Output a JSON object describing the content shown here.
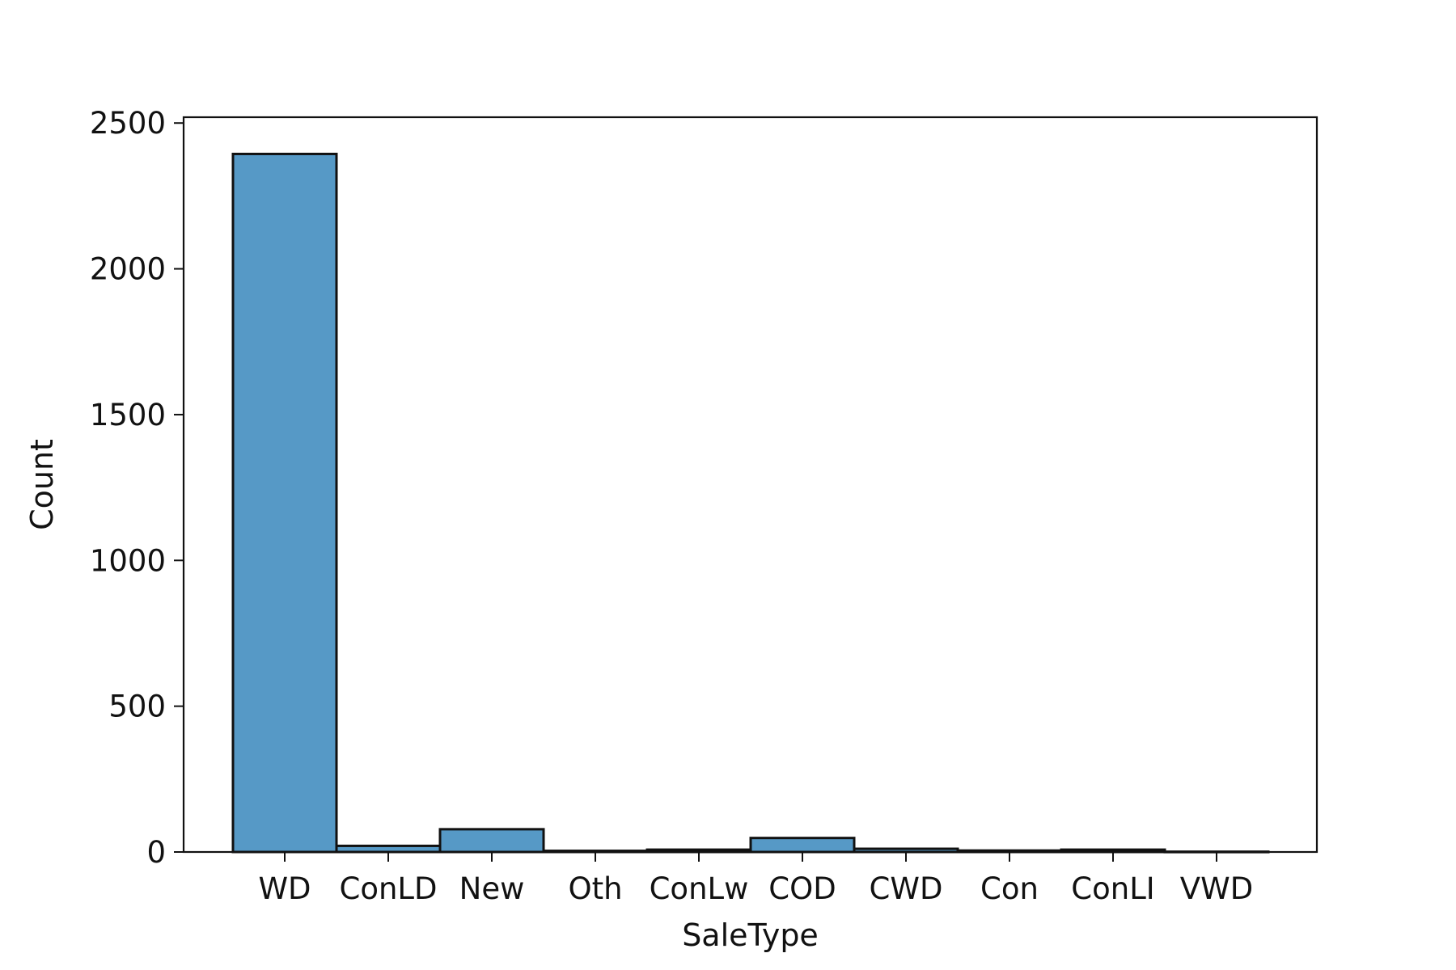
{
  "chart_data": {
    "type": "bar",
    "title": "",
    "xlabel": "SaleType",
    "ylabel": "Count",
    "categories": [
      "WD",
      "ConLD",
      "New",
      "Oth",
      "ConLw",
      "COD",
      "CWD",
      "Con",
      "ConLI",
      "VWD"
    ],
    "values": [
      2394,
      21,
      78,
      4,
      8,
      48,
      11,
      5,
      8,
      1
    ],
    "ylim": [
      0,
      2520
    ],
    "yticks": [
      0,
      500,
      1000,
      1500,
      2000,
      2500
    ],
    "ytick_labels": [
      "0",
      "500",
      "1000",
      "1500",
      "2000",
      "2500"
    ],
    "grid": false,
    "bar_color": "#5699c6",
    "edge_color": "#111111"
  }
}
